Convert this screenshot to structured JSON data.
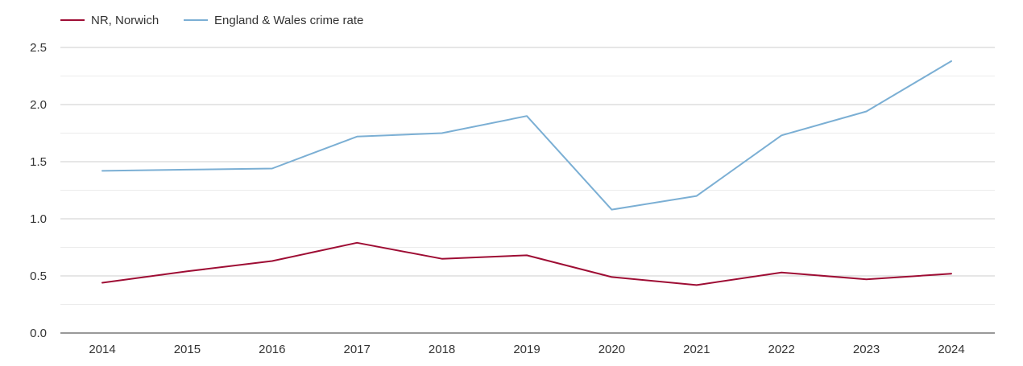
{
  "chart_data": {
    "type": "line",
    "title": "",
    "xlabel": "",
    "ylabel": "",
    "categories": [
      "2014",
      "2015",
      "2016",
      "2017",
      "2018",
      "2019",
      "2020",
      "2021",
      "2022",
      "2023",
      "2024"
    ],
    "ylim": [
      0,
      2.5
    ],
    "y_ticks": [
      "0.0",
      "0.5",
      "1.0",
      "1.5",
      "2.0",
      "2.5"
    ],
    "y_tick_values": [
      0,
      0.5,
      1.0,
      1.5,
      2.0,
      2.5
    ],
    "y_minor_step": 0.25,
    "grid": true,
    "legend_position": "top-left",
    "series": [
      {
        "name": "NR, Norwich",
        "color": "#9e0d34",
        "values": [
          0.44,
          0.54,
          0.63,
          0.79,
          0.65,
          0.68,
          0.49,
          0.42,
          0.53,
          0.47,
          0.52
        ]
      },
      {
        "name": "England & Wales crime rate",
        "color": "#7bafd4",
        "values": [
          1.42,
          1.43,
          1.44,
          1.72,
          1.75,
          1.9,
          1.08,
          1.2,
          1.73,
          1.94,
          2.38
        ]
      }
    ]
  }
}
